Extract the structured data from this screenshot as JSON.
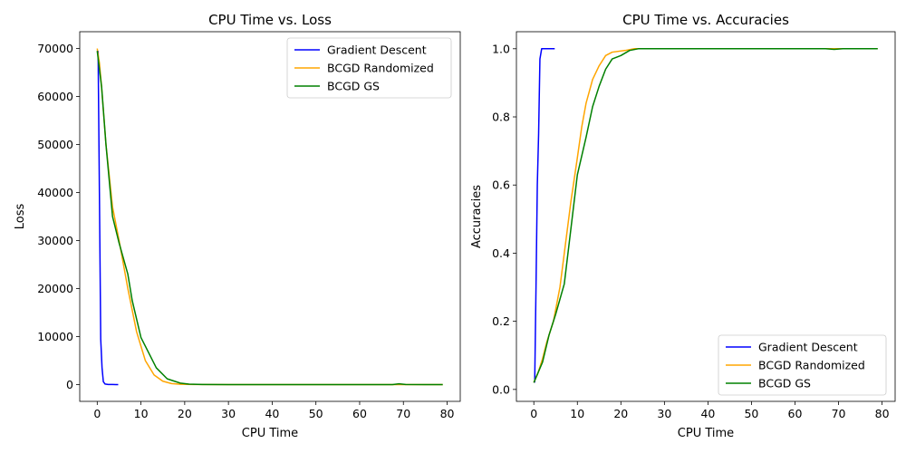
{
  "chart_data": [
    {
      "type": "line",
      "title": "CPU Time vs. Loss",
      "xlabel": "CPU Time",
      "ylabel": "Loss",
      "xlim": [
        -4,
        83
      ],
      "ylim": [
        -3500,
        73500
      ],
      "xticks": [
        0,
        10,
        20,
        30,
        40,
        50,
        60,
        70,
        80
      ],
      "yticks": [
        0,
        10000,
        20000,
        30000,
        40000,
        50000,
        60000,
        70000
      ],
      "grid": false,
      "legend": "upper right",
      "series": [
        {
          "name": "Gradient Descent",
          "color": "#0000ff",
          "points": [
            [
              0.2,
              69500
            ],
            [
              0.5,
              40000
            ],
            [
              0.8,
              9500
            ],
            [
              1.1,
              3500
            ],
            [
              1.4,
              600
            ],
            [
              1.8,
              100
            ],
            [
              2.5,
              20
            ],
            [
              3.5,
              5
            ],
            [
              4.8,
              0
            ]
          ]
        },
        {
          "name": "BCGD Randomized",
          "color": "#ffa500",
          "points": [
            [
              0,
              70000
            ],
            [
              0.5,
              67000
            ],
            [
              1,
              62000
            ],
            [
              2,
              50000
            ],
            [
              3.5,
              37000
            ],
            [
              5,
              30000
            ],
            [
              7,
              20000
            ],
            [
              9,
              11000
            ],
            [
              11,
              5000
            ],
            [
              13,
              2000
            ],
            [
              15,
              700
            ],
            [
              17,
              200
            ],
            [
              19,
              60
            ],
            [
              22,
              10
            ],
            [
              30,
              0
            ],
            [
              40,
              0
            ],
            [
              50,
              0
            ],
            [
              60,
              0
            ],
            [
              70,
              0
            ],
            [
              79,
              0
            ]
          ]
        },
        {
          "name": "BCGD GS",
          "color": "#008000",
          "points": [
            [
              0,
              69500
            ],
            [
              1,
              62000
            ],
            [
              2,
              50000
            ],
            [
              3.5,
              35000
            ],
            [
              5,
              29500
            ],
            [
              7,
              23000
            ],
            [
              8,
              17500
            ],
            [
              10,
              9800
            ],
            [
              13.5,
              3500
            ],
            [
              16,
              1200
            ],
            [
              19,
              300
            ],
            [
              21,
              80
            ],
            [
              24,
              20
            ],
            [
              30,
              0
            ],
            [
              40,
              0
            ],
            [
              50,
              0
            ],
            [
              60,
              0
            ],
            [
              67.5,
              0
            ],
            [
              69,
              150
            ],
            [
              70.5,
              20
            ],
            [
              75,
              0
            ],
            [
              79,
              0
            ]
          ]
        }
      ]
    },
    {
      "type": "line",
      "title": "CPU Time vs. Accuracies",
      "xlabel": "CPU Time",
      "ylabel": "Accuracies",
      "xlim": [
        -4,
        83
      ],
      "ylim": [
        -0.035,
        1.05
      ],
      "xticks": [
        0,
        10,
        20,
        30,
        40,
        50,
        60,
        70,
        80
      ],
      "yticks": [
        0.0,
        0.2,
        0.4,
        0.6,
        0.8,
        1.0
      ],
      "grid": false,
      "legend": "lower right",
      "series": [
        {
          "name": "Gradient Descent",
          "color": "#0000ff",
          "points": [
            [
              0.2,
              0.02
            ],
            [
              0.5,
              0.3
            ],
            [
              0.8,
              0.6
            ],
            [
              1.1,
              0.75
            ],
            [
              1.4,
              0.97
            ],
            [
              1.8,
              1.0
            ],
            [
              2.5,
              1.0
            ],
            [
              3.5,
              1.0
            ],
            [
              4.8,
              1.0
            ]
          ]
        },
        {
          "name": "BCGD Randomized",
          "color": "#ffa500",
          "points": [
            [
              0,
              0.02
            ],
            [
              1,
              0.05
            ],
            [
              2,
              0.09
            ],
            [
              3,
              0.14
            ],
            [
              4.5,
              0.2
            ],
            [
              6,
              0.3
            ],
            [
              7,
              0.4
            ],
            [
              8.5,
              0.55
            ],
            [
              10,
              0.68
            ],
            [
              11,
              0.77
            ],
            [
              12,
              0.84
            ],
            [
              13.5,
              0.91
            ],
            [
              15,
              0.95
            ],
            [
              16.5,
              0.98
            ],
            [
              18,
              0.99
            ],
            [
              21,
              0.995
            ],
            [
              23,
              1.0
            ],
            [
              30,
              1.0
            ],
            [
              40,
              1.0
            ],
            [
              50,
              1.0
            ],
            [
              60,
              1.0
            ],
            [
              70,
              1.0
            ],
            [
              79,
              1.0
            ]
          ]
        },
        {
          "name": "BCGD GS",
          "color": "#008000",
          "points": [
            [
              0,
              0.02
            ],
            [
              1,
              0.05
            ],
            [
              2,
              0.08
            ],
            [
              3.5,
              0.16
            ],
            [
              5,
              0.22
            ],
            [
              7,
              0.31
            ],
            [
              8.5,
              0.47
            ],
            [
              10,
              0.63
            ],
            [
              12,
              0.74
            ],
            [
              13.5,
              0.83
            ],
            [
              15,
              0.89
            ],
            [
              16.5,
              0.94
            ],
            [
              18,
              0.97
            ],
            [
              20,
              0.98
            ],
            [
              22,
              0.995
            ],
            [
              24,
              1.0
            ],
            [
              30,
              1.0
            ],
            [
              40,
              1.0
            ],
            [
              50,
              1.0
            ],
            [
              60,
              1.0
            ],
            [
              67,
              1.0
            ],
            [
              69,
              0.998
            ],
            [
              71,
              1.0
            ],
            [
              79,
              1.0
            ]
          ]
        }
      ]
    }
  ]
}
